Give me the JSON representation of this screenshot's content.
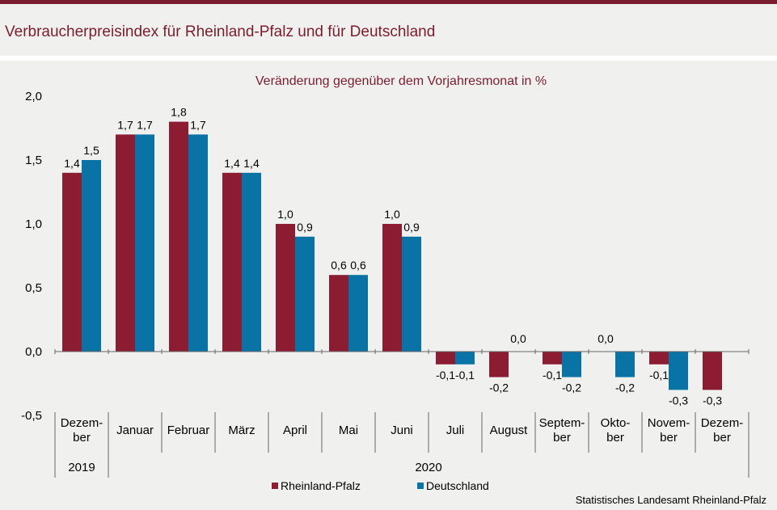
{
  "title": "Verbraucherpreisindex für Rheinland-Pfalz und für Deutschland",
  "source": "Statistisches Landesamt Rheinland-Pfalz",
  "colors": {
    "rlp": "#8b1c32",
    "de": "#0a73a6",
    "accent": "#7b1d2e"
  },
  "chart_data": {
    "type": "bar",
    "subtitle": "Veränderung gegenüber dem Vorjahresmonat in %",
    "categories": [
      [
        "Dezem-",
        "ber"
      ],
      [
        "Januar"
      ],
      [
        "Februar"
      ],
      [
        "März"
      ],
      [
        "April"
      ],
      [
        "Mai"
      ],
      [
        "Juni"
      ],
      [
        "Juli"
      ],
      [
        "August"
      ],
      [
        "Septem-",
        "ber"
      ],
      [
        "Okto-",
        "ber"
      ],
      [
        "Novem-",
        "ber"
      ],
      [
        "Dezem-",
        "ber"
      ]
    ],
    "year_groups": [
      {
        "label": "2019",
        "from": 0,
        "to": 0
      },
      {
        "label": "2020",
        "from": 1,
        "to": 12
      }
    ],
    "series": [
      {
        "name": "Rheinland-Pfalz",
        "values": [
          1.4,
          1.7,
          1.8,
          1.4,
          1.0,
          0.6,
          1.0,
          -0.1,
          -0.2,
          -0.1,
          0.0,
          -0.1,
          -0.3
        ],
        "labels": [
          "1,4",
          "1,7",
          "1,8",
          "1,4",
          "1,0",
          "0,6",
          "1,0",
          "-0,1",
          "-0,2",
          "-0,1",
          "0,0",
          "-0,1",
          "-0,3"
        ]
      },
      {
        "name": "Deutschland",
        "values": [
          1.5,
          1.7,
          1.7,
          1.4,
          0.9,
          0.6,
          0.9,
          -0.1,
          0.0,
          -0.2,
          -0.2,
          -0.3,
          null
        ],
        "labels": [
          "1,5",
          "1,7",
          "1,7",
          "1,4",
          "0,9",
          "0,6",
          "0,9",
          "-0,1",
          "0,0",
          "-0,2",
          "-0,2",
          "-0,3",
          ""
        ]
      }
    ],
    "yticks": [
      2.0,
      1.5,
      1.0,
      0.5,
      0.0,
      -0.5
    ],
    "ytick_labels": [
      "2,0",
      "1,5",
      "1,0",
      "0,5",
      "0,0",
      "-0,5"
    ],
    "ylim": [
      -0.5,
      2.0
    ],
    "legend_position": "bottom-center",
    "grid": false
  }
}
